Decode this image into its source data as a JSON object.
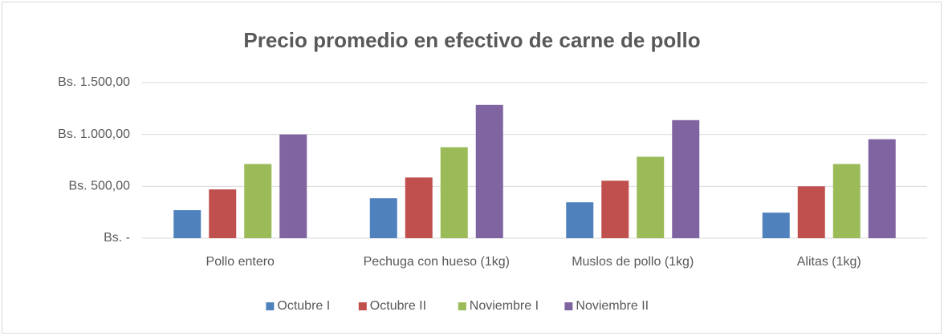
{
  "chart_data": {
    "type": "bar",
    "title": "Precio promedio en efectivo de carne de pollo",
    "categories": [
      "Pollo entero",
      "Pechuga con hueso (1kg)",
      "Muslos de pollo (1kg)",
      "Alitas (1kg)"
    ],
    "series": [
      {
        "name": "Octubre I",
        "color": "#4f81bd",
        "values": [
          270,
          385,
          346,
          246
        ]
      },
      {
        "name": "Octubre II",
        "color": "#c0504d",
        "values": [
          470,
          585,
          554,
          500
        ]
      },
      {
        "name": "Noviembre I",
        "color": "#9bbb59",
        "values": [
          715,
          877,
          785,
          715
        ]
      },
      {
        "name": "Noviembre II",
        "color": "#8064a2",
        "values": [
          1000,
          1285,
          1138,
          954
        ]
      }
    ],
    "ylim": [
      0,
      1500
    ],
    "yticks": [
      {
        "value": 0,
        "label": "Bs. -"
      },
      {
        "value": 500,
        "label": "Bs. 500,00"
      },
      {
        "value": 1000,
        "label": "Bs. 1.000,00"
      },
      {
        "value": 1500,
        "label": "Bs. 1.500,00"
      }
    ],
    "grid": true,
    "legend": "bottom"
  }
}
